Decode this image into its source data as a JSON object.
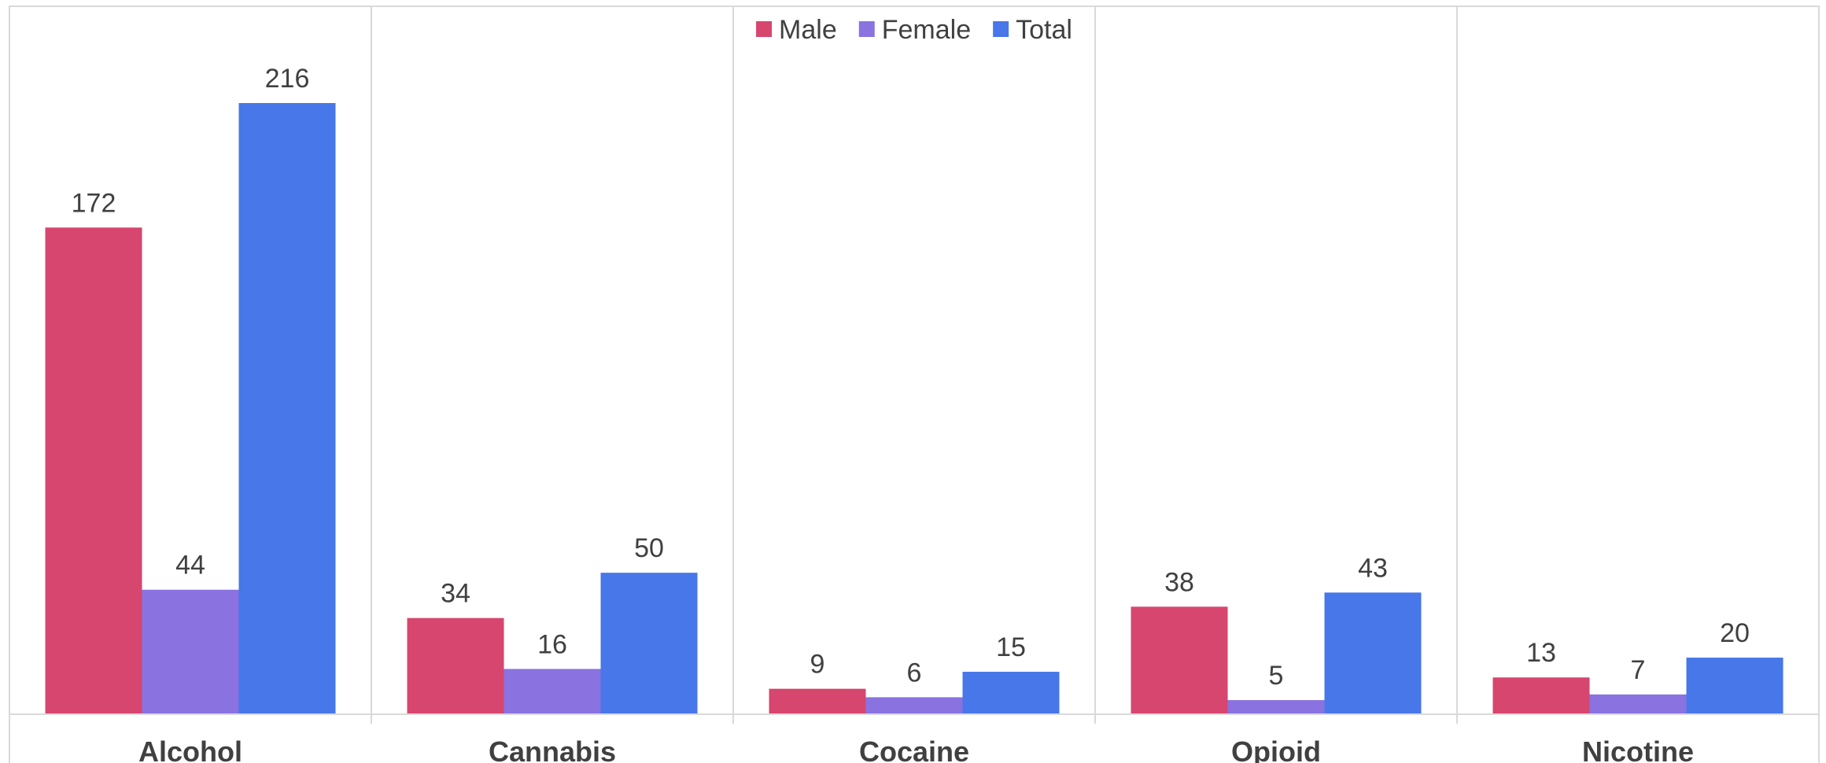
{
  "chart_data": {
    "type": "bar",
    "title": "",
    "xlabel": "",
    "ylabel": "",
    "categories": [
      "Alcohol",
      "Cannabis",
      "Cocaine",
      "Opioid",
      "Nicotine"
    ],
    "series": [
      {
        "name": "Male",
        "color": "#d6466f",
        "values": [
          172,
          34,
          9,
          38,
          13
        ]
      },
      {
        "name": "Female",
        "color": "#8a72e0",
        "values": [
          44,
          16,
          6,
          5,
          7
        ]
      },
      {
        "name": "Total",
        "color": "#4777e8",
        "values": [
          216,
          50,
          15,
          43,
          20
        ]
      }
    ],
    "ylim": [
      0,
      216
    ],
    "grid": false,
    "legend_position": "top-center",
    "data_labels": true
  }
}
